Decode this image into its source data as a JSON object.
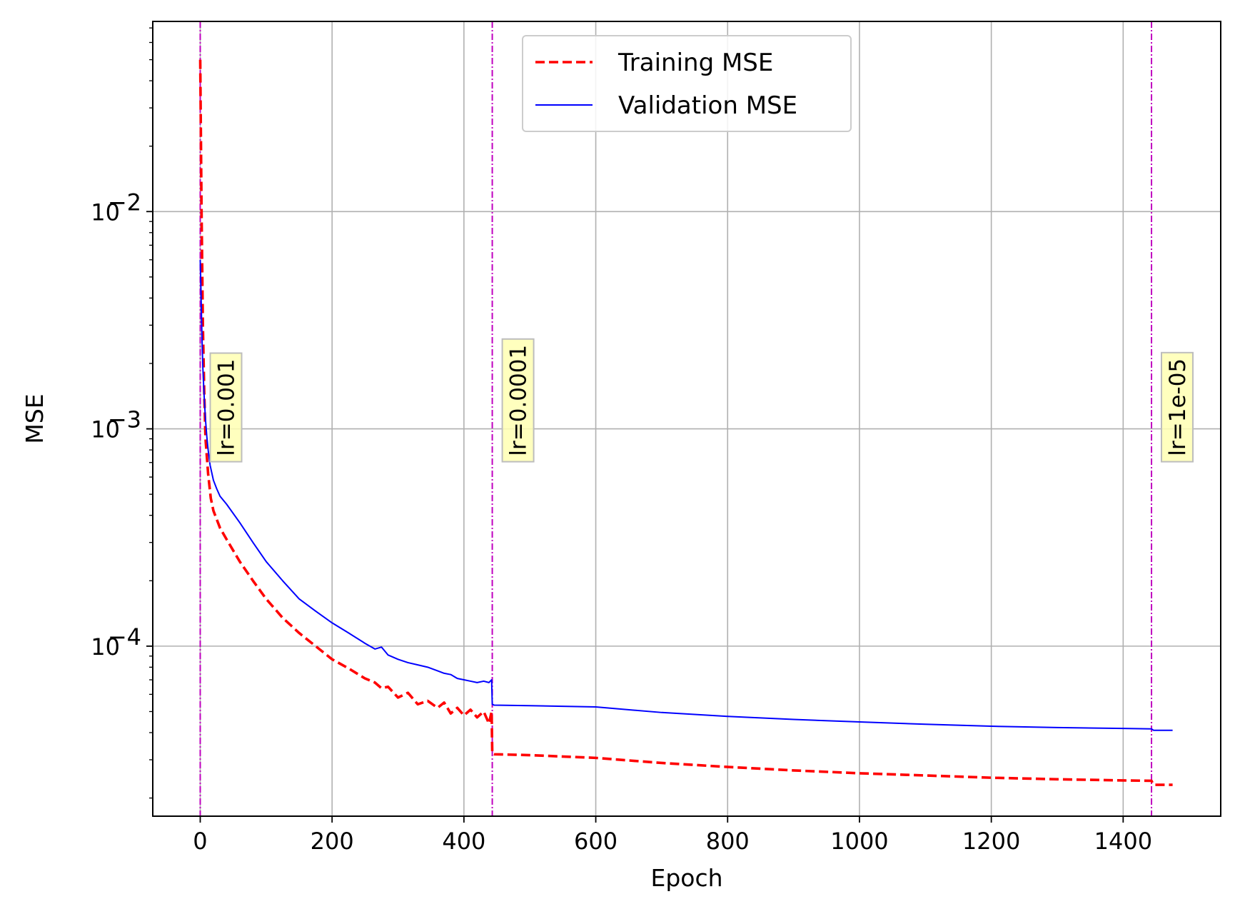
{
  "chart_data": {
    "type": "line",
    "xlabel": "Epoch",
    "ylabel": "MSE",
    "yscale": "log",
    "grid": true,
    "legend_position": "top-center",
    "xlim": [
      -72,
      1548
    ],
    "ylim": [
      1.65e-05,
      0.075
    ],
    "x_ticks": [
      0,
      200,
      400,
      600,
      800,
      1000,
      1200,
      1400
    ],
    "y_ticks": [
      {
        "value": 0.0001,
        "base": "10",
        "exp": "−4"
      },
      {
        "value": 0.001,
        "base": "10",
        "exp": "−3"
      },
      {
        "value": 0.01,
        "base": "10",
        "exp": "−2"
      }
    ],
    "series": [
      {
        "name": "Training MSE",
        "color": "#ff0000",
        "style": "dashed",
        "x": [
          0,
          2,
          4,
          6,
          8,
          12,
          16,
          20,
          30,
          40,
          60,
          80,
          100,
          125,
          150,
          175,
          200,
          225,
          250,
          265,
          275,
          285,
          300,
          315,
          330,
          345,
          360,
          370,
          380,
          390,
          400,
          410,
          420,
          430,
          438,
          442,
          443,
          446,
          500,
          600,
          700,
          800,
          900,
          1000,
          1100,
          1200,
          1300,
          1400,
          1443,
          1446,
          1475
        ],
        "y": [
          0.05,
          0.01,
          0.003,
          0.0015,
          0.0009,
          0.00062,
          0.00048,
          0.00042,
          0.00035,
          0.00031,
          0.000245,
          0.0002,
          0.000165,
          0.000135,
          0.000115,
          0.0001,
          8.7e-05,
          7.9e-05,
          7.1e-05,
          6.8e-05,
          6.4e-05,
          6.5e-05,
          5.8e-05,
          6.1e-05,
          5.4e-05,
          5.6e-05,
          5.2e-05,
          5.5e-05,
          4.9e-05,
          5.2e-05,
          4.8e-05,
          5.1e-05,
          4.7e-05,
          5e-05,
          4.4e-05,
          5e-05,
          3.2e-05,
          3.18e-05,
          3.15e-05,
          3.06e-05,
          2.9e-05,
          2.78e-05,
          2.68e-05,
          2.6e-05,
          2.54e-05,
          2.48e-05,
          2.44e-05,
          2.41e-05,
          2.4e-05,
          2.3e-05,
          2.3e-05
        ]
      },
      {
        "name": "Validation MSE",
        "color": "#0000ff",
        "style": "solid",
        "x": [
          0,
          1,
          2,
          3,
          4,
          6,
          8,
          10,
          12,
          15,
          20,
          25,
          30,
          40,
          60,
          80,
          100,
          125,
          150,
          175,
          200,
          225,
          250,
          265,
          275,
          285,
          300,
          315,
          330,
          345,
          360,
          370,
          380,
          390,
          400,
          410,
          420,
          430,
          438,
          442,
          443,
          446,
          500,
          600,
          700,
          800,
          900,
          1000,
          1100,
          1200,
          1300,
          1400,
          1443,
          1446,
          1475
        ],
        "y": [
          0.006,
          0.0045,
          0.0032,
          0.0024,
          0.0019,
          0.0014,
          0.0011,
          0.00092,
          0.0008,
          0.00068,
          0.00058,
          0.00053,
          0.00049,
          0.00045,
          0.00037,
          0.0003,
          0.000245,
          0.0002,
          0.000165,
          0.000145,
          0.000128,
          0.000115,
          0.000103,
          9.7e-05,
          9.9e-05,
          9.1e-05,
          8.7e-05,
          8.4e-05,
          8.2e-05,
          8e-05,
          7.7e-05,
          7.5e-05,
          7.4e-05,
          7.1e-05,
          7e-05,
          6.9e-05,
          6.8e-05,
          6.9e-05,
          6.8e-05,
          7e-05,
          5.4e-05,
          5.35e-05,
          5.32e-05,
          5.25e-05,
          4.95e-05,
          4.75e-05,
          4.6e-05,
          4.48e-05,
          4.37e-05,
          4.28e-05,
          4.22e-05,
          4.18e-05,
          4.16e-05,
          4.1e-05,
          4.1e-05
        ]
      }
    ],
    "vlines": [
      {
        "x": 0,
        "label": "lr=0.001"
      },
      {
        "x": 443,
        "label": "lr=0.0001"
      },
      {
        "x": 1443,
        "label": "lr=1e-05"
      }
    ],
    "vline_color": "#bf00bf",
    "annotation_bg": "#ffffb3"
  }
}
